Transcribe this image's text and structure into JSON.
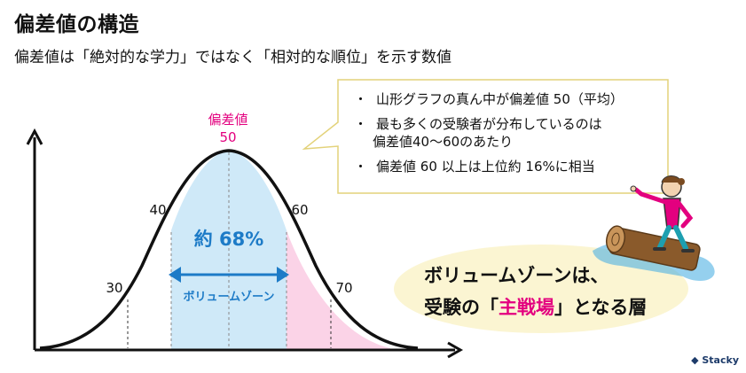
{
  "title": "偏差値の構造",
  "subtitle": "偏差値は「絶対的な学力」ではなく「相対的な順位」を示す数値",
  "curve": {
    "peak_label": "偏差値",
    "peak_value": "50",
    "tick_40": "40",
    "tick_60": "60",
    "tick_30": "30",
    "tick_70": "70",
    "center_pct": "約 68%",
    "range_label": "ボリュームゾーン"
  },
  "bubble": {
    "items": [
      {
        "line1": "山形グラフの真ん中が偏差値 50（平均）",
        "line2": ""
      },
      {
        "line1": "最も多くの受験者が分布しているのは",
        "line2": "偏差値40〜60のあたり"
      },
      {
        "line1": "偏差値 60 以上は上位約 16%に相当",
        "line2": ""
      }
    ],
    "bullet": "・"
  },
  "zone": {
    "line1": "ボリュームゾーンは、",
    "line2_pre": "受験の「",
    "line2_em": "主戦場",
    "line2_post": "」となる層"
  },
  "logo": "Stacky",
  "colors": {
    "center_fill": "#cfe9f8",
    "right_fill": "#fbd3e7",
    "pink": "#e3007f",
    "blue": "#1d7bc7",
    "bubble_border": "#e3d27a",
    "cream": "#fbf5d2"
  }
}
